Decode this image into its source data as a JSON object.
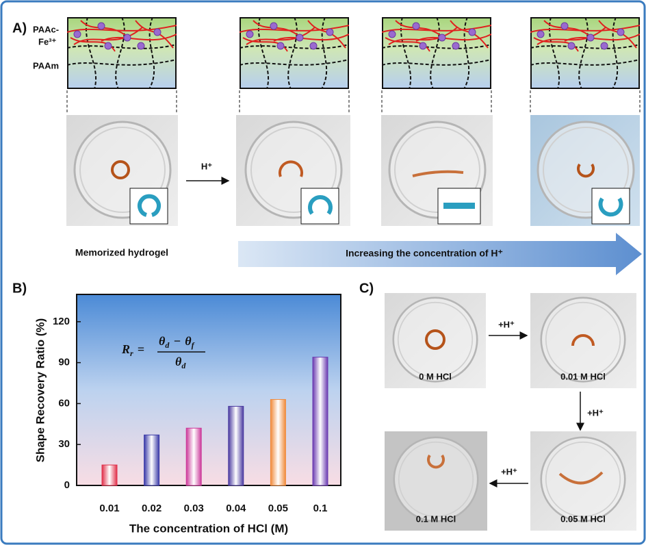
{
  "panel_a": {
    "label": "A)",
    "layer_top": "PAAc-",
    "layer_ion": "Fe³⁺",
    "layer_bottom": "PAAm",
    "arrow_label": "H⁺",
    "start_caption": "Memorized hydrogel",
    "arrow_caption": "Increasing the concentration of H⁺"
  },
  "chart_data": {
    "type": "bar",
    "label": "B)",
    "categories": [
      "0.01",
      "0.02",
      "0.03",
      "0.04",
      "0.05",
      "0.1"
    ],
    "values": [
      15,
      37,
      42,
      58,
      63,
      94
    ],
    "colors": [
      "#e0304a",
      "#3a3aa8",
      "#cc3a9a",
      "#4a3aa0",
      "#f08a3a",
      "#6a3ab0"
    ],
    "ylim": [
      0,
      140
    ],
    "yticks": [
      0,
      30,
      60,
      90,
      120
    ],
    "x_label": "The concentration of HCl (M)",
    "y_label": "Shape Recovery Ratio (%)",
    "formula": {
      "lhs": "R",
      "lhs_sub": "r",
      "equals": "=",
      "num_a": "θ",
      "num_a_sub": "d",
      "minus": "−",
      "num_b": "θ",
      "num_b_sub": "f",
      "den": "θ",
      "den_sub": "d"
    }
  },
  "panel_c": {
    "label": "C)",
    "photos": [
      "0 M HCl",
      "0.01 M HCl",
      "0.05 M HCl",
      "0.1 M HCl"
    ],
    "arrows": [
      "+H⁺",
      "+H⁺",
      "+H⁺"
    ]
  }
}
